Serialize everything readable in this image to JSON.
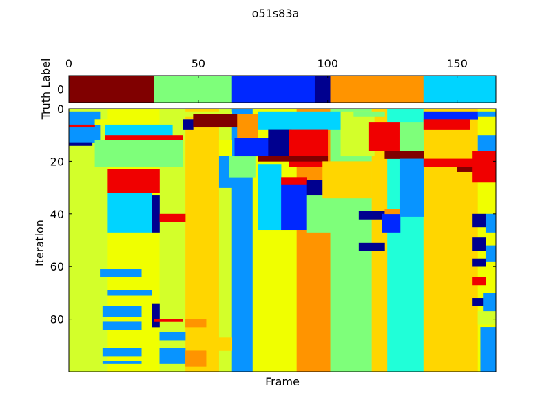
{
  "figure_title": "o51s83a",
  "colors": {
    "dark_red": "#800000",
    "red": "#f00000",
    "orange": "#ff9400",
    "gold": "#ffd600",
    "yellow": "#f0ff00",
    "yellow_green": "#d3ff2a",
    "light_green": "#7eff7a",
    "aquamarine": "#20ffd8",
    "cyan": "#00d4ff",
    "azure": "#0894ff",
    "blue": "#0028ff",
    "navy": "#00008f"
  },
  "chart_data": [
    {
      "name": "truth_label_strip",
      "type": "heatmap",
      "ylabel": "Truth Label",
      "xlim": [
        0,
        165
      ],
      "ylim": [
        -0.5,
        0.5
      ],
      "x_ticks": [
        "0",
        "50",
        "100",
        "150"
      ],
      "y_ticks": [
        "0"
      ],
      "x_tick_values": [
        0,
        50,
        100,
        150
      ],
      "y_tick_values": [
        0
      ],
      "segments": [
        {
          "start": 0,
          "end": 33,
          "color": "dark_red"
        },
        {
          "start": 33,
          "end": 63,
          "color": "light_green"
        },
        {
          "start": 63,
          "end": 95,
          "color": "blue"
        },
        {
          "start": 95,
          "end": 101,
          "color": "navy"
        },
        {
          "start": 101,
          "end": 137,
          "color": "orange"
        },
        {
          "start": 137,
          "end": 165,
          "color": "cyan"
        }
      ]
    },
    {
      "name": "iteration_frame_heatmap",
      "type": "heatmap",
      "xlabel": "Frame",
      "ylabel": "Iteration",
      "xlim": [
        0,
        165
      ],
      "ylim": [
        0,
        100
      ],
      "y_ticks": [
        "0",
        "20",
        "40",
        "60",
        "80"
      ],
      "y_tick_values": [
        0,
        20,
        40,
        60,
        80
      ],
      "x_ticks_shown": false,
      "columns": [
        {
          "start": 0,
          "end": 15,
          "color": "yellow_green"
        },
        {
          "start": 15,
          "end": 35,
          "color": "yellow"
        },
        {
          "start": 35,
          "end": 45,
          "color": "yellow_green"
        },
        {
          "start": 45,
          "end": 58,
          "color": "gold"
        },
        {
          "start": 58,
          "end": 63,
          "color": "yellow_green"
        },
        {
          "start": 63,
          "end": 71,
          "color": "azure"
        },
        {
          "start": 71,
          "end": 88,
          "color": "yellow"
        },
        {
          "start": 88,
          "end": 101,
          "color": "orange"
        },
        {
          "start": 101,
          "end": 117,
          "color": "light_green"
        },
        {
          "start": 117,
          "end": 123,
          "color": "gold"
        },
        {
          "start": 123,
          "end": 137,
          "color": "aquamarine"
        },
        {
          "start": 137,
          "end": 158,
          "color": "gold"
        },
        {
          "start": 158,
          "end": 165,
          "color": "yellow"
        }
      ],
      "patches": [
        {
          "x0": 0,
          "x1": 12,
          "y0": 1,
          "y1": 13,
          "color": "azure"
        },
        {
          "x0": 0,
          "x1": 10,
          "y0": 6,
          "y1": 7,
          "color": "red"
        },
        {
          "x0": 0,
          "x1": 9,
          "y0": 13,
          "y1": 14,
          "color": "navy"
        },
        {
          "x0": 10,
          "x1": 28,
          "y0": 4,
          "y1": 6,
          "color": "yellow"
        },
        {
          "x0": 14,
          "x1": 40,
          "y0": 6,
          "y1": 10,
          "color": "cyan"
        },
        {
          "x0": 14,
          "x1": 44,
          "y0": 10,
          "y1": 12,
          "color": "red"
        },
        {
          "x0": 10,
          "x1": 44,
          "y0": 12,
          "y1": 22,
          "color": "light_green"
        },
        {
          "x0": 15,
          "x1": 35,
          "y0": 23,
          "y1": 32,
          "color": "red"
        },
        {
          "x0": 15,
          "x1": 32,
          "y0": 32,
          "y1": 47,
          "color": "cyan"
        },
        {
          "x0": 32,
          "x1": 35,
          "y0": 33,
          "y1": 47,
          "color": "navy"
        },
        {
          "x0": 35,
          "x1": 45,
          "y0": 40,
          "y1": 43,
          "color": "red"
        },
        {
          "x0": 12,
          "x1": 28,
          "y0": 61,
          "y1": 64,
          "color": "azure"
        },
        {
          "x0": 15,
          "x1": 32,
          "y0": 69,
          "y1": 71,
          "color": "azure"
        },
        {
          "x0": 13,
          "x1": 28,
          "y0": 75,
          "y1": 79,
          "color": "azure"
        },
        {
          "x0": 13,
          "x1": 28,
          "y0": 81,
          "y1": 84,
          "color": "azure"
        },
        {
          "x0": 13,
          "x1": 28,
          "y0": 91,
          "y1": 94,
          "color": "azure"
        },
        {
          "x0": 13,
          "x1": 28,
          "y0": 96,
          "y1": 97,
          "color": "azure"
        },
        {
          "x0": 32,
          "x1": 35,
          "y0": 74,
          "y1": 83,
          "color": "navy"
        },
        {
          "x0": 33,
          "x1": 44,
          "y0": 80,
          "y1": 81,
          "color": "red"
        },
        {
          "x0": 35,
          "x1": 45,
          "y0": 85,
          "y1": 88,
          "color": "azure"
        },
        {
          "x0": 35,
          "x1": 45,
          "y0": 91,
          "y1": 97,
          "color": "azure"
        },
        {
          "x0": 45,
          "x1": 53,
          "y0": 80,
          "y1": 83,
          "color": "orange"
        },
        {
          "x0": 45,
          "x1": 53,
          "y0": 92,
          "y1": 98,
          "color": "orange"
        },
        {
          "x0": 53,
          "x1": 63,
          "y0": 87,
          "y1": 92,
          "color": "gold"
        },
        {
          "x0": 35,
          "x1": 63,
          "y0": 1,
          "y1": 3,
          "color": "yellow_green"
        },
        {
          "x0": 44,
          "x1": 48,
          "y0": 4,
          "y1": 8,
          "color": "navy"
        },
        {
          "x0": 48,
          "x1": 65,
          "y0": 2,
          "y1": 7,
          "color": "dark_red"
        },
        {
          "x0": 58,
          "x1": 63,
          "y0": 12,
          "y1": 18,
          "color": "yellow"
        },
        {
          "x0": 58,
          "x1": 63,
          "y0": 18,
          "y1": 30,
          "color": "azure"
        },
        {
          "x0": 62,
          "x1": 72,
          "y0": 18,
          "y1": 26,
          "color": "light_green"
        },
        {
          "x0": 65,
          "x1": 73,
          "y0": 2,
          "y1": 11,
          "color": "orange"
        },
        {
          "x0": 64,
          "x1": 77,
          "y0": 11,
          "y1": 18,
          "color": "blue"
        },
        {
          "x0": 73,
          "x1": 105,
          "y0": 1,
          "y1": 8,
          "color": "cyan"
        },
        {
          "x0": 77,
          "x1": 86,
          "y0": 8,
          "y1": 18,
          "color": "navy"
        },
        {
          "x0": 85,
          "x1": 100,
          "y0": 8,
          "y1": 22,
          "color": "red"
        },
        {
          "x0": 73,
          "x1": 100,
          "y0": 18,
          "y1": 20,
          "color": "dark_red"
        },
        {
          "x0": 73,
          "x1": 82,
          "y0": 21,
          "y1": 46,
          "color": "cyan"
        },
        {
          "x0": 82,
          "x1": 92,
          "y0": 26,
          "y1": 29,
          "color": "red"
        },
        {
          "x0": 82,
          "x1": 92,
          "y0": 29,
          "y1": 46,
          "color": "blue"
        },
        {
          "x0": 92,
          "x1": 103,
          "y0": 27,
          "y1": 33,
          "color": "navy"
        },
        {
          "x0": 92,
          "x1": 106,
          "y0": 33,
          "y1": 47,
          "color": "light_green"
        },
        {
          "x0": 105,
          "x1": 118,
          "y0": 1,
          "y1": 18,
          "color": "yellow_green"
        },
        {
          "x0": 98,
          "x1": 117,
          "y0": 20,
          "y1": 34,
          "color": "gold"
        },
        {
          "x0": 110,
          "x1": 122,
          "y0": 1,
          "y1": 3,
          "color": "light_green"
        },
        {
          "x0": 116,
          "x1": 128,
          "y0": 5,
          "y1": 16,
          "color": "red"
        },
        {
          "x0": 112,
          "x1": 125,
          "y0": 39,
          "y1": 42,
          "color": "navy"
        },
        {
          "x0": 112,
          "x1": 122,
          "y0": 51,
          "y1": 54,
          "color": "navy"
        },
        {
          "x0": 121,
          "x1": 128,
          "y0": 40,
          "y1": 47,
          "color": "blue"
        },
        {
          "x0": 122,
          "x1": 137,
          "y0": 38,
          "y1": 40,
          "color": "orange"
        },
        {
          "x0": 128,
          "x1": 137,
          "y0": 5,
          "y1": 16,
          "color": "light_green"
        },
        {
          "x0": 122,
          "x1": 137,
          "y0": 16,
          "y1": 19,
          "color": "dark_red"
        },
        {
          "x0": 128,
          "x1": 137,
          "y0": 19,
          "y1": 41,
          "color": "azure"
        },
        {
          "x0": 137,
          "x1": 158,
          "y0": 1,
          "y1": 4,
          "color": "blue"
        },
        {
          "x0": 137,
          "x1": 155,
          "y0": 4,
          "y1": 8,
          "color": "red"
        },
        {
          "x0": 137,
          "x1": 158,
          "y0": 19,
          "y1": 22,
          "color": "red"
        },
        {
          "x0": 150,
          "x1": 158,
          "y0": 22,
          "y1": 24,
          "color": "dark_red"
        },
        {
          "x0": 158,
          "x1": 165,
          "y0": 1,
          "y1": 3,
          "color": "azure"
        },
        {
          "x0": 158,
          "x1": 165,
          "y0": 10,
          "y1": 16,
          "color": "azure"
        },
        {
          "x0": 156,
          "x1": 165,
          "y0": 16,
          "y1": 28,
          "color": "red"
        },
        {
          "x0": 156,
          "x1": 161,
          "y0": 40,
          "y1": 45,
          "color": "navy"
        },
        {
          "x0": 156,
          "x1": 161,
          "y0": 49,
          "y1": 54,
          "color": "navy"
        },
        {
          "x0": 156,
          "x1": 161,
          "y0": 57,
          "y1": 60,
          "color": "navy"
        },
        {
          "x0": 156,
          "x1": 161,
          "y0": 64,
          "y1": 67,
          "color": "red"
        },
        {
          "x0": 156,
          "x1": 161,
          "y0": 72,
          "y1": 75,
          "color": "navy"
        },
        {
          "x0": 161,
          "x1": 165,
          "y0": 40,
          "y1": 47,
          "color": "azure"
        },
        {
          "x0": 161,
          "x1": 165,
          "y0": 52,
          "y1": 58,
          "color": "azure"
        },
        {
          "x0": 160,
          "x1": 165,
          "y0": 70,
          "y1": 77,
          "color": "azure"
        },
        {
          "x0": 159,
          "x1": 165,
          "y0": 83,
          "y1": 100,
          "color": "azure"
        },
        {
          "x0": 158,
          "x1": 165,
          "y0": 77,
          "y1": 82,
          "color": "yellow_green"
        }
      ]
    }
  ]
}
